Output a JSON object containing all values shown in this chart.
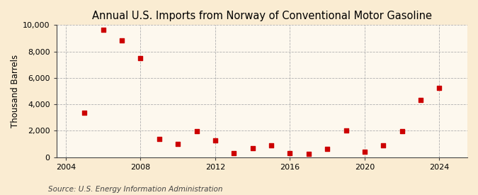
{
  "title": "Annual U.S. Imports from Norway of Conventional Motor Gasoline",
  "ylabel": "Thousand Barrels",
  "source": "Source: U.S. Energy Information Administration",
  "fig_background_color": "#faecd2",
  "plot_background_color": "#fdf8ee",
  "marker_color": "#cc0000",
  "years": [
    2005,
    2006,
    2007,
    2008,
    2009,
    2010,
    2011,
    2012,
    2013,
    2014,
    2015,
    2016,
    2017,
    2018,
    2019,
    2020,
    2021,
    2022,
    2023,
    2024
  ],
  "values": [
    3350,
    9650,
    8850,
    7500,
    1380,
    980,
    1950,
    1250,
    300,
    680,
    880,
    300,
    230,
    650,
    2050,
    400,
    880,
    1950,
    4350,
    5250
  ],
  "xlim": [
    2003.5,
    2025.5
  ],
  "ylim": [
    0,
    10000
  ],
  "yticks": [
    0,
    2000,
    4000,
    6000,
    8000,
    10000
  ],
  "xticks": [
    2004,
    2008,
    2012,
    2016,
    2020,
    2024
  ],
  "title_fontsize": 10.5,
  "label_fontsize": 8.5,
  "tick_fontsize": 8,
  "source_fontsize": 7.5
}
